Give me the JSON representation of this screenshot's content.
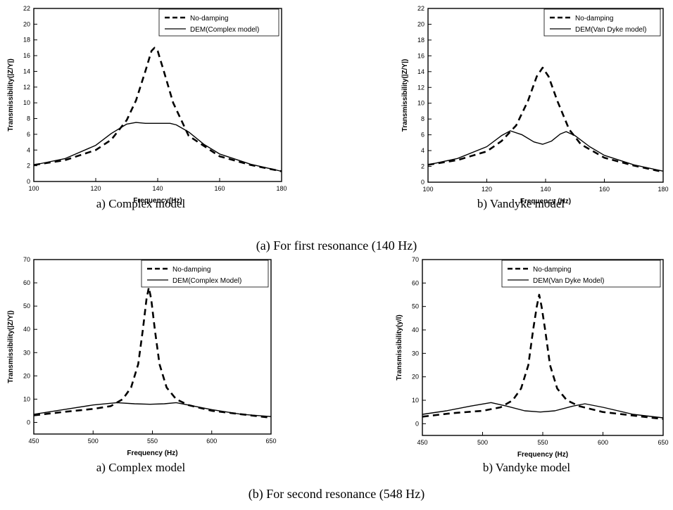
{
  "figure": {
    "caption_a": "(a) For first resonance (140 Hz)",
    "caption_b": "(b) For second resonance (548 Hz)"
  },
  "chart_data": [
    {
      "type": "line",
      "subcaption": "a) Complex model",
      "xlabel": "Frequency(Hz)",
      "ylabel": "Transmissibility(|Z/Y|)",
      "xlim": [
        100,
        180
      ],
      "ylim": [
        0,
        22
      ],
      "xticks": [
        100,
        120,
        140,
        160,
        180
      ],
      "yticks": [
        0,
        2,
        4,
        6,
        8,
        10,
        12,
        14,
        16,
        18,
        20,
        22
      ],
      "legend_position": "top-right",
      "grid": false,
      "series": [
        {
          "name": "No-damping",
          "style": "dashed",
          "x": [
            100,
            110,
            120,
            125,
            130,
            133,
            136,
            138,
            139,
            140,
            142,
            145,
            150,
            160,
            170,
            180
          ],
          "y": [
            2.1,
            2.7,
            4.0,
            5.3,
            7.8,
            10.3,
            14.0,
            16.6,
            17.0,
            16.6,
            14.0,
            10.0,
            5.8,
            3.2,
            2.1,
            1.3
          ]
        },
        {
          "name": "DEM(Complex model)",
          "style": "solid",
          "x": [
            100,
            110,
            120,
            125,
            130,
            133,
            136,
            140,
            144,
            146,
            150,
            155,
            160,
            170,
            180
          ],
          "y": [
            2.1,
            2.9,
            4.6,
            6.1,
            7.3,
            7.5,
            7.4,
            7.4,
            7.4,
            7.2,
            6.3,
            4.7,
            3.5,
            2.2,
            1.3
          ]
        }
      ]
    },
    {
      "type": "line",
      "subcaption": "b) Vandyke model",
      "xlabel": "Frequency (Hz)",
      "ylabel": "Transmissibility(|Z/Y|)",
      "xlim": [
        100,
        180
      ],
      "ylim": [
        0,
        22
      ],
      "xticks": [
        100,
        120,
        140,
        160,
        180
      ],
      "yticks": [
        0,
        2,
        4,
        6,
        8,
        10,
        12,
        14,
        16,
        18,
        20,
        22
      ],
      "legend_position": "top-right",
      "grid": false,
      "series": [
        {
          "name": "No-damping",
          "style": "dashed",
          "x": [
            100,
            110,
            120,
            125,
            130,
            134,
            137,
            139,
            141,
            144,
            148,
            152,
            160,
            170,
            180
          ],
          "y": [
            2.2,
            2.8,
            3.9,
            5.2,
            7.2,
            10.3,
            13.4,
            14.5,
            13.4,
            10.3,
            6.7,
            4.8,
            3.1,
            2.1,
            1.3
          ]
        },
        {
          "name": "DEM(Van Dyke model)",
          "style": "solid",
          "x": [
            100,
            110,
            120,
            125,
            128,
            132,
            136,
            139,
            142,
            145,
            147,
            150,
            155,
            160,
            170,
            180
          ],
          "y": [
            2.2,
            3.0,
            4.5,
            5.9,
            6.5,
            6.0,
            5.1,
            4.8,
            5.2,
            6.1,
            6.4,
            5.9,
            4.5,
            3.4,
            2.2,
            1.4
          ]
        }
      ]
    },
    {
      "type": "line",
      "subcaption": "a) Complex model",
      "xlabel": "Frequency (Hz)",
      "ylabel": "Transmissibility(|Z/Y|)",
      "xlim": [
        450,
        650
      ],
      "ylim": [
        -5,
        70
      ],
      "xticks": [
        450,
        500,
        550,
        600,
        650
      ],
      "yticks": [
        0,
        10,
        20,
        30,
        40,
        50,
        60,
        70
      ],
      "legend_position": "top-right",
      "grid": false,
      "series": [
        {
          "name": "No-damping",
          "style": "dashed",
          "x": [
            450,
            475,
            500,
            515,
            525,
            532,
            538,
            542,
            545,
            547,
            549,
            552,
            556,
            562,
            570,
            580,
            600,
            625,
            650
          ],
          "y": [
            3,
            4.5,
            5.8,
            7,
            10,
            15,
            25,
            40,
            53,
            58,
            53,
            40,
            25,
            15,
            10,
            7.5,
            5,
            3.5,
            2
          ]
        },
        {
          "name": "DEM(Complex Model)",
          "style": "solid",
          "x": [
            450,
            475,
            500,
            520,
            535,
            548,
            560,
            570,
            580,
            600,
            625,
            650
          ],
          "y": [
            3.5,
            5.5,
            7.5,
            8.5,
            8,
            7.8,
            8,
            8.5,
            7.5,
            5.5,
            3.5,
            2.5
          ]
        }
      ]
    },
    {
      "type": "line",
      "subcaption": "b) Vandyke model",
      "xlabel": "Frequency (Hz)",
      "ylabel": "Transmissibility(y/l)",
      "xlim": [
        450,
        650
      ],
      "ylim": [
        -5,
        70
      ],
      "xticks": [
        450,
        500,
        550,
        600,
        650
      ],
      "yticks": [
        0,
        10,
        20,
        30,
        40,
        50,
        60,
        70
      ],
      "legend_position": "top-right",
      "grid": false,
      "series": [
        {
          "name": "No-damping",
          "style": "dashed",
          "x": [
            450,
            475,
            500,
            515,
            525,
            532,
            538,
            542,
            545,
            547,
            549,
            552,
            556,
            562,
            570,
            580,
            600,
            625,
            650
          ],
          "y": [
            3,
            4.5,
            5.5,
            7,
            10,
            15,
            25,
            40,
            50,
            55,
            50,
            40,
            25,
            15,
            10,
            7.5,
            5,
            3.5,
            2
          ]
        },
        {
          "name": "DEM(Van Dyke Model)",
          "style": "solid",
          "x": [
            450,
            470,
            490,
            507,
            520,
            535,
            548,
            560,
            575,
            585,
            600,
            625,
            650
          ],
          "y": [
            4,
            5.5,
            7.5,
            9,
            7.5,
            5.5,
            5,
            5.5,
            7.5,
            8.5,
            7,
            4,
            2.5
          ]
        }
      ]
    }
  ]
}
